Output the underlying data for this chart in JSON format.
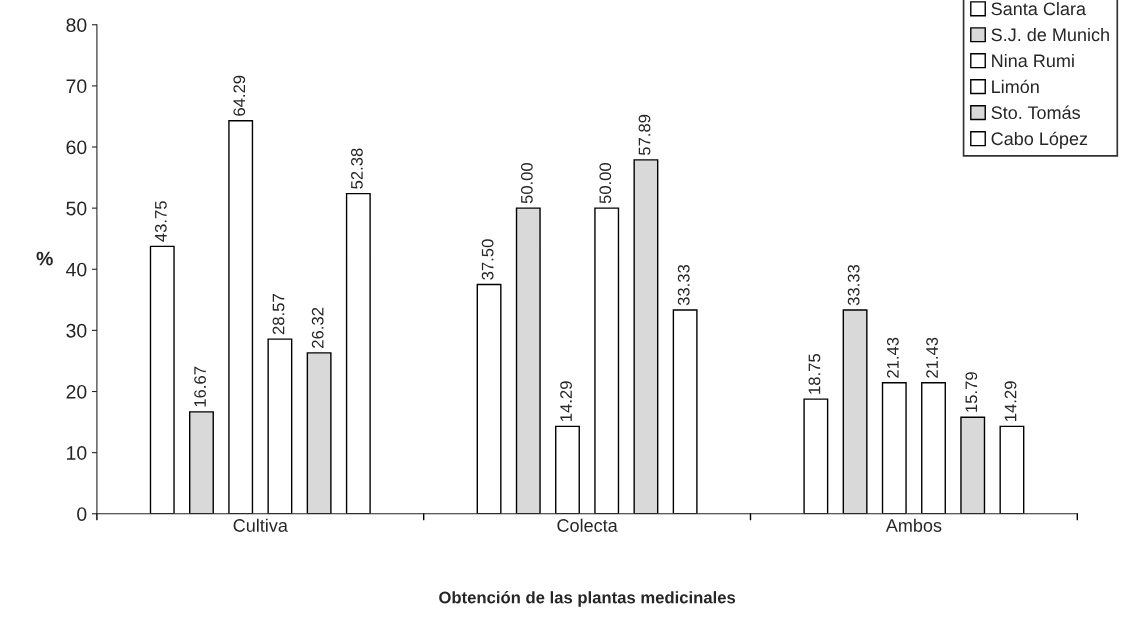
{
  "chart_data": {
    "type": "bar",
    "xlabel": "Obtención de las plantas medicinales",
    "ylabel": "%",
    "categories": [
      "Cultiva",
      "Colecta",
      "Ambos"
    ],
    "series": [
      {
        "name": "Santa Clara",
        "color": "#ffffff",
        "values": [
          43.75,
          37.5,
          18.75
        ],
        "value_labels": [
          "43.75",
          "37.50",
          "18.75"
        ]
      },
      {
        "name": "S.J. de Munich",
        "color": "#d9d9d9",
        "values": [
          16.67,
          50.0,
          33.33
        ],
        "value_labels": [
          "16.67",
          "50.00",
          "33.33"
        ]
      },
      {
        "name": "Nina Rumi",
        "color": "#ffffff",
        "values": [
          64.29,
          14.29,
          21.43
        ],
        "value_labels": [
          "64.29",
          "14.29",
          "21.43"
        ]
      },
      {
        "name": "Limón",
        "color": "#ffffff",
        "values": [
          28.57,
          50.0,
          21.43
        ],
        "value_labels": [
          "28.57",
          "50.00",
          "21.43"
        ]
      },
      {
        "name": "Sto. Tomás",
        "color": "#d9d9d9",
        "values": [
          26.32,
          57.89,
          15.79
        ],
        "value_labels": [
          "26.32",
          "57.89",
          "15.79"
        ]
      },
      {
        "name": "Cabo López",
        "color": "#ffffff",
        "values": [
          52.38,
          33.33,
          14.29
        ],
        "value_labels": [
          "52.38",
          "33.33",
          "14.29"
        ]
      }
    ],
    "ylim": [
      0,
      80
    ],
    "yticks": [
      0,
      10,
      20,
      30,
      40,
      50,
      60,
      70,
      80
    ],
    "grid": false,
    "legend": "top right"
  }
}
